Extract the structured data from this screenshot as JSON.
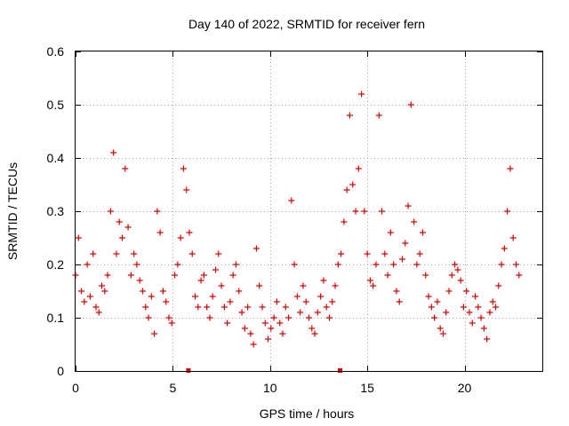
{
  "chart_data": {
    "type": "scatter",
    "title": "Day 140 of 2022, SRMTID for receiver fern",
    "xlabel": "GPS time / hours",
    "ylabel": "SRMTID / TECUs",
    "xlim": [
      0,
      24
    ],
    "ylim": [
      0,
      0.6
    ],
    "xticks": [
      0,
      5,
      10,
      15,
      20
    ],
    "xtick_labels": [
      "0",
      "5",
      "10",
      "15",
      "20"
    ],
    "yticks": [
      0,
      0.1,
      0.2,
      0.3,
      0.4,
      0.5,
      0.6
    ],
    "ytick_labels": [
      "0",
      "0.1",
      "0.2",
      "0.3",
      "0.4",
      "0.5",
      "0.6"
    ],
    "grid": true,
    "marker": "+",
    "color": "#e00000",
    "zero_markers_x": [
      5.8,
      13.6
    ],
    "series": [
      {
        "name": "SRMTID",
        "x": [
          0.0,
          0.15,
          0.3,
          0.45,
          0.6,
          0.75,
          0.9,
          1.05,
          1.2,
          1.35,
          1.5,
          1.65,
          1.8,
          1.95,
          2.1,
          2.25,
          2.4,
          2.55,
          2.7,
          2.85,
          3.0,
          3.15,
          3.3,
          3.45,
          3.6,
          3.75,
          3.9,
          4.05,
          4.2,
          4.35,
          4.5,
          4.65,
          4.8,
          4.95,
          5.1,
          5.25,
          5.4,
          5.55,
          5.7,
          5.85,
          6.0,
          6.15,
          6.3,
          6.45,
          6.6,
          6.75,
          6.9,
          7.05,
          7.2,
          7.35,
          7.5,
          7.65,
          7.8,
          7.95,
          8.1,
          8.25,
          8.4,
          8.55,
          8.7,
          8.85,
          9.0,
          9.15,
          9.3,
          9.45,
          9.6,
          9.75,
          9.9,
          10.05,
          10.2,
          10.35,
          10.5,
          10.65,
          10.8,
          10.95,
          11.1,
          11.25,
          11.4,
          11.55,
          11.7,
          11.85,
          12.0,
          12.15,
          12.3,
          12.45,
          12.6,
          12.75,
          12.9,
          13.05,
          13.2,
          13.35,
          13.5,
          13.65,
          13.8,
          13.95,
          14.1,
          14.25,
          14.4,
          14.55,
          14.7,
          14.85,
          15.0,
          15.15,
          15.3,
          15.45,
          15.6,
          15.75,
          15.9,
          16.05,
          16.2,
          16.35,
          16.5,
          16.65,
          16.8,
          16.95,
          17.1,
          17.25,
          17.4,
          17.55,
          17.7,
          17.85,
          18.0,
          18.15,
          18.3,
          18.45,
          18.6,
          18.75,
          18.9,
          19.05,
          19.2,
          19.35,
          19.5,
          19.65,
          19.8,
          19.95,
          20.1,
          20.25,
          20.4,
          20.55,
          20.7,
          20.85,
          21.0,
          21.15,
          21.3,
          21.45,
          21.6,
          21.75,
          21.9,
          22.05,
          22.2,
          22.35,
          22.5,
          22.65,
          22.8
        ],
        "y": [
          0.18,
          0.25,
          0.15,
          0.13,
          0.2,
          0.14,
          0.22,
          0.12,
          0.11,
          0.16,
          0.15,
          0.18,
          0.3,
          0.41,
          0.22,
          0.28,
          0.25,
          0.38,
          0.27,
          0.18,
          0.22,
          0.2,
          0.17,
          0.15,
          0.12,
          0.1,
          0.14,
          0.07,
          0.3,
          0.26,
          0.15,
          0.13,
          0.1,
          0.09,
          0.18,
          0.2,
          0.25,
          0.38,
          0.34,
          0.26,
          0.22,
          0.14,
          0.12,
          0.17,
          0.18,
          0.12,
          0.1,
          0.14,
          0.19,
          0.22,
          0.16,
          0.12,
          0.09,
          0.13,
          0.18,
          0.2,
          0.15,
          0.11,
          0.08,
          0.12,
          0.07,
          0.05,
          0.23,
          0.16,
          0.12,
          0.09,
          0.06,
          0.08,
          0.1,
          0.13,
          0.09,
          0.07,
          0.12,
          0.1,
          0.32,
          0.2,
          0.14,
          0.11,
          0.16,
          0.13,
          0.1,
          0.08,
          0.07,
          0.11,
          0.14,
          0.17,
          0.12,
          0.1,
          0.13,
          0.16,
          0.2,
          0.22,
          0.28,
          0.34,
          0.48,
          0.35,
          0.3,
          0.38,
          0.52,
          0.3,
          0.22,
          0.17,
          0.16,
          0.2,
          0.48,
          0.3,
          0.22,
          0.18,
          0.26,
          0.2,
          0.15,
          0.13,
          0.21,
          0.24,
          0.31,
          0.5,
          0.28,
          0.2,
          0.22,
          0.26,
          0.18,
          0.14,
          0.12,
          0.1,
          0.13,
          0.08,
          0.07,
          0.11,
          0.15,
          0.18,
          0.2,
          0.19,
          0.17,
          0.12,
          0.15,
          0.11,
          0.09,
          0.14,
          0.12,
          0.1,
          0.08,
          0.06,
          0.11,
          0.13,
          0.12,
          0.16,
          0.2,
          0.23,
          0.3,
          0.38,
          0.25,
          0.2,
          0.18
        ]
      }
    ]
  }
}
